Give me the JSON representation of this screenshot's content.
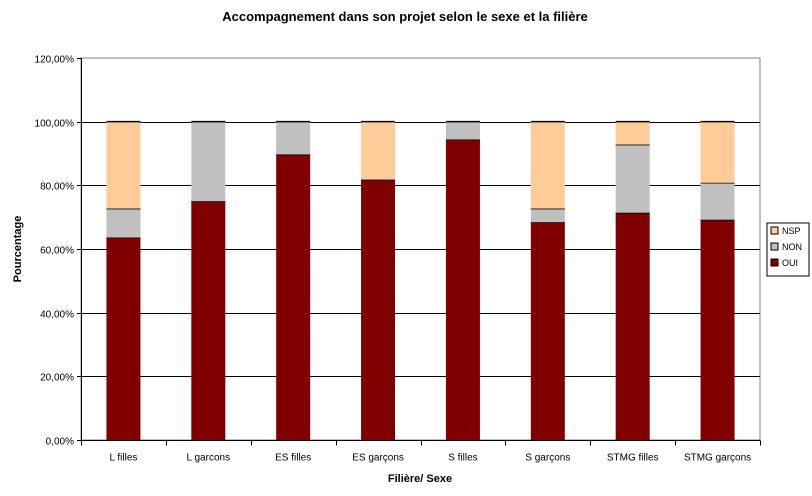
{
  "chart_data": {
    "type": "bar",
    "stacked": true,
    "title": "Accompagnement dans son projet selon le sexe et la filière",
    "xlabel": "Filière/ Sexe",
    "ylabel": "Pourcentage",
    "ylim": [
      0,
      120
    ],
    "yticks": [
      0,
      20,
      40,
      60,
      80,
      100,
      120
    ],
    "ytick_labels": [
      "0,00%",
      "20,00%",
      "40,00%",
      "60,00%",
      "80,00%",
      "100,00%",
      "120,00%"
    ],
    "grid": true,
    "legend_position": "right",
    "categories": [
      "L filles",
      "L garcons",
      "ES filles",
      "ES garçons",
      "S filles",
      "S garçons",
      "STMG filles",
      "STMG garçons"
    ],
    "series": [
      {
        "name": "OUI",
        "color": "#800000",
        "values": [
          63.6,
          75.0,
          89.7,
          81.8,
          94.4,
          68.4,
          71.4,
          69.2
        ]
      },
      {
        "name": "NON",
        "color": "#c0c0c0",
        "values": [
          9.1,
          25.0,
          10.3,
          0.0,
          5.6,
          4.3,
          21.4,
          11.6
        ]
      },
      {
        "name": "NSP",
        "color": "#ffcc99",
        "values": [
          27.3,
          0.0,
          0.0,
          18.2,
          0.0,
          27.3,
          7.2,
          19.2
        ]
      }
    ],
    "legend_order": [
      "NSP",
      "NON",
      "OUI"
    ]
  }
}
